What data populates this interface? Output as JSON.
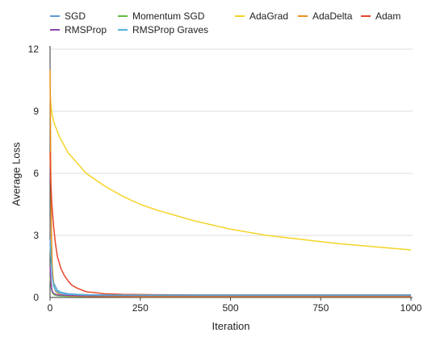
{
  "chart_data": {
    "type": "line",
    "xlabel": "Iteration",
    "ylabel": "Average Loss",
    "xlim": [
      0,
      1000
    ],
    "ylim": [
      0,
      12
    ],
    "xticks": [
      "0",
      "250",
      "500",
      "750",
      "1000"
    ],
    "yticks": [
      "0",
      "3",
      "6",
      "9",
      "12"
    ],
    "grid": "horizontal",
    "legend_position": "top",
    "series": [
      {
        "name": "SGD",
        "color": "#5b9bd5",
        "x": [
          0,
          3,
          6,
          10,
          20,
          30,
          50,
          75,
          100,
          150,
          200,
          300,
          500,
          750,
          1000
        ],
        "y": [
          2.8,
          2.0,
          1.2,
          0.7,
          0.35,
          0.25,
          0.18,
          0.15,
          0.13,
          0.12,
          0.12,
          0.11,
          0.11,
          0.11,
          0.11
        ]
      },
      {
        "name": "Momentum SGD",
        "color": "#5fbf3f",
        "x": [
          0,
          2,
          4,
          6,
          10,
          15,
          25,
          50,
          100,
          250,
          500,
          750,
          1000
        ],
        "y": [
          1.0,
          0.7,
          0.4,
          0.25,
          0.15,
          0.1,
          0.08,
          0.06,
          0.05,
          0.05,
          0.05,
          0.05,
          0.05
        ]
      },
      {
        "name": "AdaGrad",
        "color": "#f5d327",
        "x": [
          0,
          2,
          5,
          10,
          25,
          50,
          100,
          150,
          200,
          250,
          300,
          400,
          500,
          600,
          700,
          800,
          900,
          1000
        ],
        "y": [
          10.0,
          9.4,
          8.9,
          8.5,
          7.8,
          7.0,
          6.0,
          5.4,
          4.9,
          4.5,
          4.2,
          3.7,
          3.3,
          3.0,
          2.8,
          2.6,
          2.45,
          2.3
        ]
      },
      {
        "name": "AdaDelta",
        "color": "#e8901e",
        "x": [
          0,
          1,
          2,
          4,
          6,
          10,
          15,
          25,
          50,
          100,
          250,
          500,
          750,
          1000
        ],
        "y": [
          11.0,
          9.0,
          6.0,
          3.0,
          1.5,
          0.6,
          0.3,
          0.15,
          0.08,
          0.05,
          0.04,
          0.04,
          0.04,
          0.04
        ]
      },
      {
        "name": "Adam",
        "color": "#e8452a",
        "x": [
          0,
          2,
          5,
          10,
          15,
          20,
          30,
          40,
          50,
          60,
          75,
          100,
          150,
          200,
          300,
          500,
          750,
          1000
        ],
        "y": [
          7.0,
          5.6,
          4.5,
          3.4,
          2.6,
          2.0,
          1.4,
          1.05,
          0.8,
          0.6,
          0.45,
          0.28,
          0.18,
          0.15,
          0.13,
          0.12,
          0.12,
          0.12
        ]
      },
      {
        "name": "RMSProp",
        "color": "#8e44ad",
        "x": [
          0,
          2,
          4,
          6,
          10,
          20,
          50,
          100,
          250,
          500,
          750,
          1000
        ],
        "y": [
          1.5,
          0.9,
          0.5,
          0.3,
          0.2,
          0.12,
          0.1,
          0.09,
          0.09,
          0.09,
          0.09,
          0.09
        ]
      },
      {
        "name": "RMSProp Graves",
        "color": "#4fb3d9",
        "x": [
          0,
          2,
          4,
          6,
          10,
          15,
          25,
          50,
          100,
          250,
          500,
          750,
          1000
        ],
        "y": [
          2.6,
          2.0,
          1.5,
          1.0,
          0.55,
          0.35,
          0.22,
          0.15,
          0.12,
          0.11,
          0.11,
          0.11,
          0.11
        ]
      }
    ]
  }
}
